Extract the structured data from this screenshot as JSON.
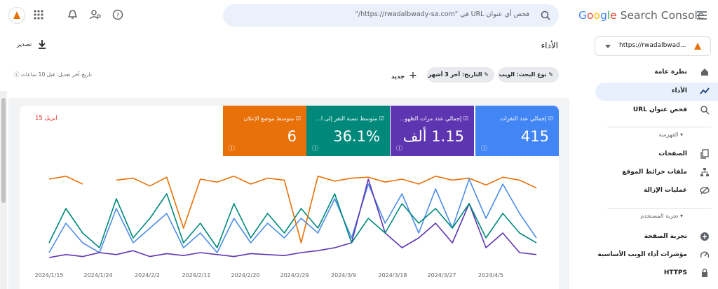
{
  "header": {
    "brand": "Google",
    "product": "Search Console",
    "search_placeholder": "فحص أي عنوان URL في \"https://rwadalbwady-sa.com/\""
  },
  "property": "https://rwadalbwad...",
  "nav": {
    "overview": "نظرة عامة",
    "performance": "الأداء",
    "url_inspection": "فحص عنوان URL",
    "indexing": "الفهرسة",
    "pages": "الصفحات",
    "sitemaps": "ملفات خرائط الموقع",
    "removals": "عمليات الإزالة",
    "experience": "تجربة المستخدم",
    "page_experience": "تجربة الصفحة",
    "core_web_vitals": "مؤشرات أداء الويب الأساسية",
    "https": "HTTPS"
  },
  "page": {
    "title": "الأداء",
    "export": "تصدير",
    "last_updated": "تاريخ آخر تعديل: قبل 10 ساعات"
  },
  "filters": [
    "نوع البحث: الويب",
    "التاريخ: آخر 3 أشهر"
  ],
  "new_filter": "جديد",
  "metrics": [
    {
      "label": "إجمالي عدد النقرات",
      "value": 415
    },
    {
      "label": "إجمالي عدد مرات الظهو...",
      "value": "1.15 ألف"
    },
    {
      "label": "متوسط نسبة النقر إلى ا...",
      "value": "36.1%"
    },
    {
      "label": "متوسط موضع الإعلان",
      "value": 6
    }
  ],
  "chart_data": {
    "type": "line",
    "annotation": "ابريل 15",
    "xticks": [
      "2024/1/15",
      "2024/1/24",
      "2024/2/2",
      "2024/2/11",
      "2024/2/20",
      "2024/2/29",
      "2024/3/9",
      "2024/3/18",
      "2024/3/27",
      "2024/4/5"
    ],
    "ylim": [
      0,
      100
    ],
    "series": [
      {
        "name": "إجمالي عدد النقرات",
        "color": "#4d8ee8",
        "values": [
          10,
          40,
          20,
          10,
          55,
          20,
          35,
          50,
          15,
          30,
          10,
          45,
          20,
          40,
          25,
          45,
          30,
          65,
          25,
          80,
          40,
          70,
          30,
          75,
          35,
          85,
          45,
          80,
          50,
          25
        ]
      },
      {
        "name": "إجمالي عدد مرات الظهو...",
        "color": "#5e35b1",
        "values": [
          5,
          8,
          6,
          10,
          8,
          12,
          6,
          9,
          7,
          10,
          8,
          6,
          9,
          8,
          7,
          10,
          12,
          15,
          20,
          85,
          30,
          15,
          25,
          40,
          20,
          60,
          15,
          30,
          10,
          8
        ]
      },
      {
        "name": "متوسط نسبة النقر إلى ا...",
        "color": "#00897b",
        "values": [
          20,
          55,
          30,
          15,
          65,
          25,
          45,
          70,
          20,
          40,
          15,
          60,
          25,
          50,
          30,
          55,
          35,
          70,
          20,
          45,
          30,
          60,
          40,
          55,
          35,
          60,
          25,
          50,
          30,
          20
        ]
      },
      {
        "name": "متوسط موضع الإعلان",
        "color": "#e8710a",
        "values": [
          85,
          88,
          80,
          null,
          84,
          86,
          78,
          87,
          35,
          85,
          82,
          88,
          80,
          86,
          84,
          20,
          88,
          83,
          86,
          87,
          82,
          85,
          80,
          88,
          84,
          86,
          79,
          87,
          84,
          76
        ]
      }
    ]
  }
}
